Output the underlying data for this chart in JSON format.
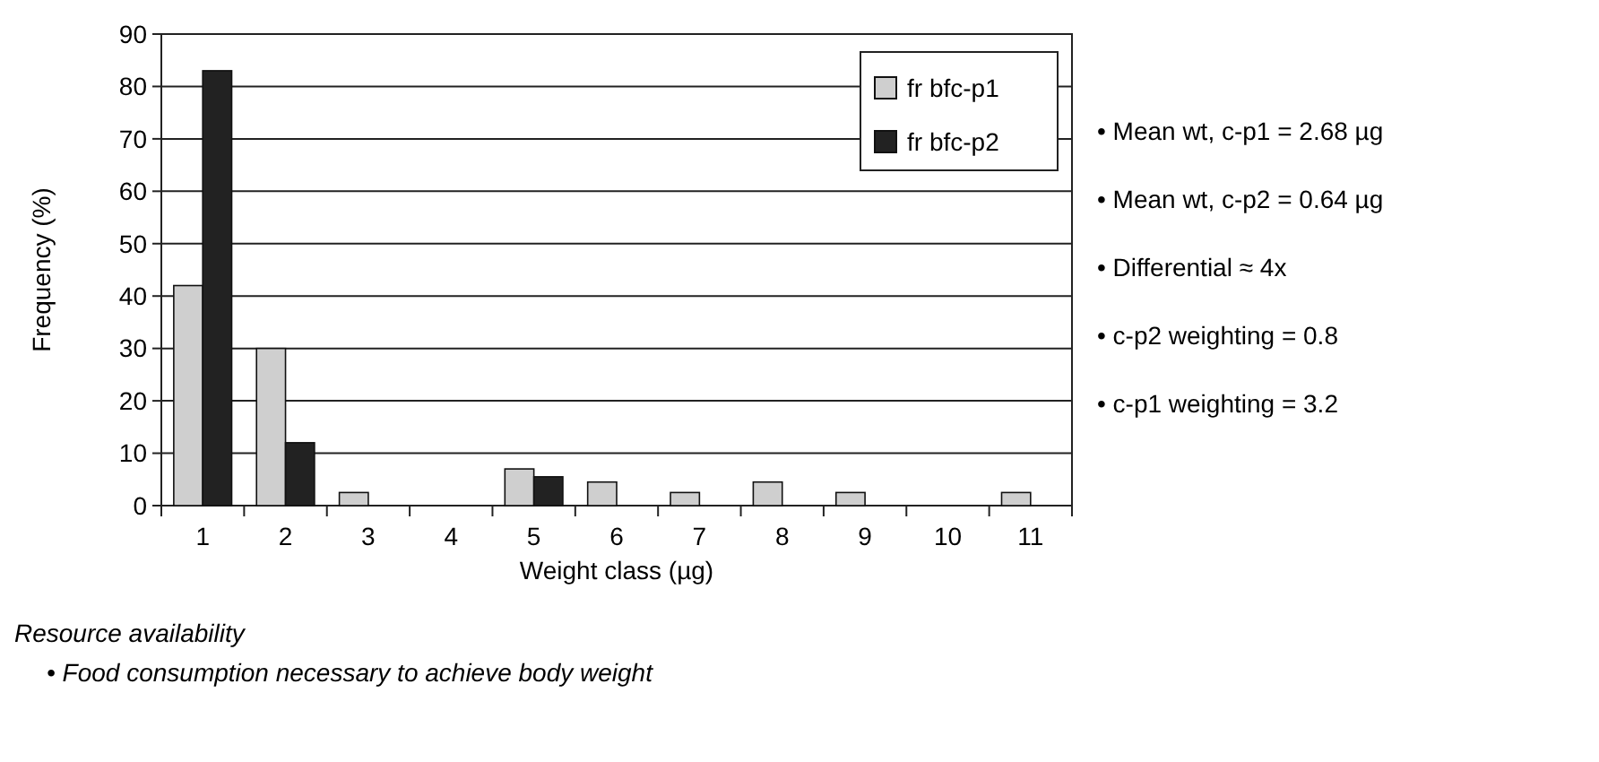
{
  "chart_data": {
    "type": "bar",
    "xlabel": "Weight class (µg)",
    "ylabel": "Frequency (%)",
    "categories": [
      "1",
      "2",
      "3",
      "4",
      "5",
      "6",
      "7",
      "8",
      "9",
      "10",
      "11"
    ],
    "series": [
      {
        "name": "fr bfc-p1",
        "color": "#cfcfcf",
        "values": [
          42,
          30,
          2.5,
          0,
          7,
          4.5,
          2.5,
          4.5,
          2.5,
          0,
          2.5
        ]
      },
      {
        "name": "fr bfc-p2",
        "color": "#222222",
        "values": [
          83,
          12,
          0,
          0,
          5.5,
          0,
          0,
          0,
          0,
          0,
          0
        ]
      }
    ],
    "ylim": [
      0,
      90
    ],
    "yticks": [
      0,
      10,
      20,
      30,
      40,
      50,
      60,
      70,
      80,
      90
    ],
    "grid": "y",
    "legend": "top right",
    "annotations": [
      "• Mean wt, c-p1 = 2.68 µg",
      "• Mean wt, c-p2 = 0.64 µg",
      "• Differential ≈ 4x",
      "• c-p2 weighting = 0.8",
      "• c-p1 weighting = 3.2",
      "Resource availability",
      "• Food consumption necessary to achieve body weight"
    ]
  }
}
